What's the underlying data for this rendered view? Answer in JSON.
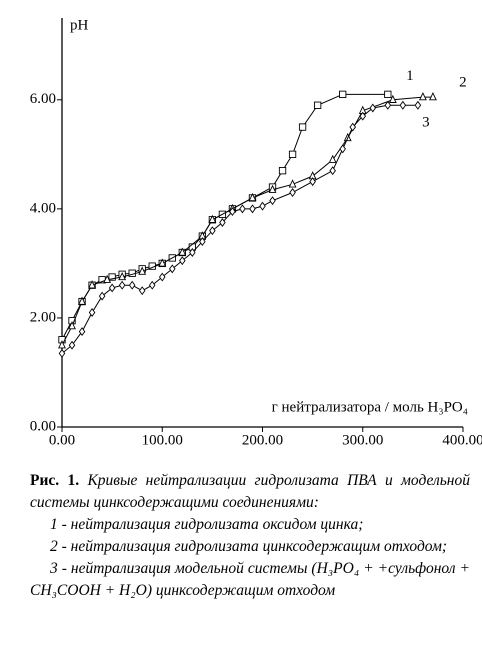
{
  "chart_data": {
    "type": "line",
    "ylabel": "pH",
    "xlabel": "г нейтрализатора / моль H₃PO₄",
    "xlim": [
      0,
      400
    ],
    "ylim": [
      0,
      7.5
    ],
    "xticks": [
      {
        "value": 0,
        "label": "0.00"
      },
      {
        "value": 100,
        "label": "100.00"
      },
      {
        "value": 200,
        "label": "200.00"
      },
      {
        "value": 300,
        "label": "300.00"
      },
      {
        "value": 400,
        "label": "400.00"
      }
    ],
    "yticks": [
      {
        "value": 0,
        "label": "0.00"
      },
      {
        "value": 2,
        "label": "2.00"
      },
      {
        "value": 4,
        "label": "4.00"
      },
      {
        "value": 6,
        "label": "6.00"
      }
    ],
    "series": [
      {
        "name": "1",
        "color": "#000",
        "marker": "square",
        "x": [
          0,
          10,
          20,
          30,
          40,
          50,
          60,
          70,
          80,
          90,
          100,
          110,
          120,
          130,
          140,
          150,
          160,
          170,
          190,
          210,
          220,
          230,
          240,
          255,
          280,
          325
        ],
        "values": [
          1.6,
          1.95,
          2.3,
          2.6,
          2.7,
          2.75,
          2.8,
          2.82,
          2.9,
          2.95,
          3.0,
          3.1,
          3.2,
          3.3,
          3.5,
          3.8,
          3.9,
          4.0,
          4.2,
          4.4,
          4.7,
          5.0,
          5.5,
          5.9,
          6.1,
          6.1
        ]
      },
      {
        "name": "2",
        "color": "#000",
        "marker": "triangle",
        "x": [
          0,
          10,
          20,
          30,
          45,
          60,
          80,
          100,
          120,
          140,
          150,
          170,
          190,
          210,
          230,
          250,
          270,
          285,
          300,
          330,
          360,
          370
        ],
        "values": [
          1.5,
          1.85,
          2.3,
          2.6,
          2.7,
          2.75,
          2.85,
          3.0,
          3.2,
          3.5,
          3.8,
          4.0,
          4.2,
          4.35,
          4.45,
          4.6,
          4.9,
          5.3,
          5.8,
          6.0,
          6.05,
          6.05
        ]
      },
      {
        "name": "3",
        "color": "#000",
        "marker": "diamond",
        "x": [
          0,
          10,
          20,
          30,
          40,
          50,
          60,
          70,
          80,
          90,
          100,
          110,
          120,
          130,
          140,
          150,
          160,
          170,
          180,
          190,
          200,
          210,
          230,
          250,
          270,
          280,
          290,
          300,
          310,
          325,
          340,
          355
        ],
        "values": [
          1.35,
          1.5,
          1.75,
          2.1,
          2.4,
          2.55,
          2.6,
          2.6,
          2.5,
          2.6,
          2.75,
          2.9,
          3.05,
          3.2,
          3.4,
          3.6,
          3.75,
          3.95,
          4.0,
          4.0,
          4.05,
          4.15,
          4.3,
          4.5,
          4.7,
          5.1,
          5.5,
          5.7,
          5.85,
          5.9,
          5.9,
          5.9
        ]
      }
    ]
  },
  "caption": {
    "label": "Рис. 1.",
    "text": "Кривые нейтрализации гидролизата ПВА и модельной системы цинксодержащими соединениями:",
    "items": [
      "1 - нейтрализация гидролизата оксидом цинка;",
      "2 - нейтрализация гидролизата цинксодержащим отходом;",
      "3 - нейтрализация модельной системы (H₃PO₄ + +сульфонол + CH₃COOH + H₂O) цинксодержащим отходом"
    ]
  }
}
